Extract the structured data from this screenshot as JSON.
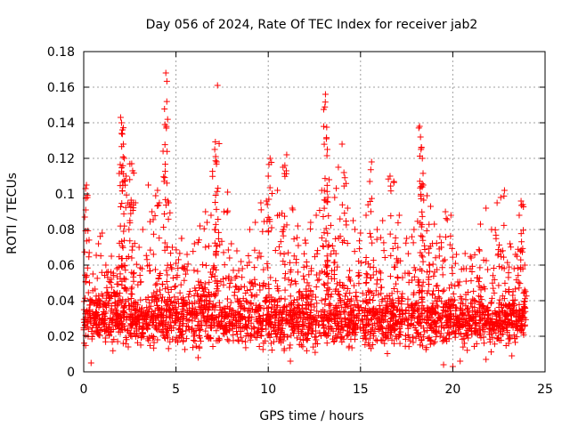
{
  "chart_data": {
    "type": "scatter",
    "title": "Day 056 of 2024, Rate Of TEC Index for receiver jab2",
    "xlabel": "GPS time / hours",
    "ylabel": "ROTI / TECUs",
    "xlim": [
      0,
      25
    ],
    "ylim": [
      0,
      0.18
    ],
    "xticks": [
      0,
      5,
      10,
      15,
      20,
      25
    ],
    "xtick_labels": [
      "0",
      "5",
      "10",
      "15",
      "20",
      "25"
    ],
    "yticks": [
      0,
      0.02,
      0.04,
      0.06,
      0.08,
      0.1,
      0.12,
      0.14,
      0.16,
      0.18
    ],
    "ytick_labels": [
      "0",
      "0.02",
      "0.04",
      "0.06",
      "0.08",
      "0.1",
      "0.12",
      "0.14",
      "0.16",
      "0.18"
    ],
    "grid": true,
    "marker": "plus",
    "color": "#ff0000",
    "series": [
      {
        "name": "ROTI",
        "points": [
          [
            0.1,
            0.103
          ],
          [
            0.15,
            0.105
          ],
          [
            0.2,
            0.098
          ],
          [
            0.3,
            0.067
          ],
          [
            0.5,
            0.055
          ],
          [
            0.8,
            0.072
          ],
          [
            1.0,
            0.078
          ],
          [
            1.2,
            0.06
          ],
          [
            1.5,
            0.065
          ],
          [
            1.8,
            0.058
          ],
          [
            2.0,
            0.143
          ],
          [
            2.05,
            0.14
          ],
          [
            2.1,
            0.136
          ],
          [
            2.15,
            0.128
          ],
          [
            2.2,
            0.12
          ],
          [
            2.3,
            0.11
          ],
          [
            2.5,
            0.085
          ],
          [
            2.6,
            0.117
          ],
          [
            2.65,
            0.113
          ],
          [
            2.8,
            0.095
          ],
          [
            3.0,
            0.07
          ],
          [
            3.2,
            0.08
          ],
          [
            3.5,
            0.105
          ],
          [
            3.7,
            0.09
          ],
          [
            3.9,
            0.099
          ],
          [
            4.0,
            0.102
          ],
          [
            4.1,
            0.095
          ],
          [
            4.3,
            0.124
          ],
          [
            4.4,
            0.139
          ],
          [
            4.45,
            0.168
          ],
          [
            4.6,
            0.095
          ],
          [
            4.8,
            0.07
          ],
          [
            5.0,
            0.061
          ],
          [
            5.3,
            0.075
          ],
          [
            5.6,
            0.066
          ],
          [
            6.0,
            0.072
          ],
          [
            6.3,
            0.082
          ],
          [
            6.6,
            0.09
          ],
          [
            6.9,
            0.088
          ],
          [
            7.1,
            0.125
          ],
          [
            7.15,
            0.121
          ],
          [
            7.2,
            0.118
          ],
          [
            7.25,
            0.161
          ],
          [
            7.6,
            0.09
          ],
          [
            7.8,
            0.101
          ],
          [
            8.0,
            0.072
          ],
          [
            8.3,
            0.068
          ],
          [
            8.6,
            0.058
          ],
          [
            9.0,
            0.08
          ],
          [
            9.3,
            0.084
          ],
          [
            9.6,
            0.095
          ],
          [
            9.9,
            0.096
          ],
          [
            10.0,
            0.11
          ],
          [
            10.1,
            0.12
          ],
          [
            10.5,
            0.102
          ],
          [
            10.8,
            0.115
          ],
          [
            10.9,
            0.116
          ],
          [
            11.0,
            0.122
          ],
          [
            11.3,
            0.092
          ],
          [
            11.6,
            0.082
          ],
          [
            12.0,
            0.074
          ],
          [
            12.3,
            0.084
          ],
          [
            12.6,
            0.088
          ],
          [
            12.9,
            0.102
          ],
          [
            13.1,
            0.156
          ],
          [
            13.15,
            0.131
          ],
          [
            13.2,
            0.125
          ],
          [
            13.3,
            0.108
          ],
          [
            13.6,
            0.098
          ],
          [
            13.8,
            0.115
          ],
          [
            14.0,
            0.128
          ],
          [
            14.1,
            0.112
          ],
          [
            14.3,
            0.092
          ],
          [
            14.6,
            0.085
          ],
          [
            15.0,
            0.078
          ],
          [
            15.3,
            0.088
          ],
          [
            15.5,
            0.107
          ],
          [
            15.6,
            0.118
          ],
          [
            15.9,
            0.08
          ],
          [
            16.2,
            0.085
          ],
          [
            16.6,
            0.11
          ],
          [
            16.8,
            0.107
          ],
          [
            17.1,
            0.088
          ],
          [
            17.5,
            0.075
          ],
          [
            17.9,
            0.08
          ],
          [
            18.2,
            0.138
          ],
          [
            18.25,
            0.132
          ],
          [
            18.3,
            0.126
          ],
          [
            18.35,
            0.12
          ],
          [
            18.4,
            0.105
          ],
          [
            18.6,
            0.099
          ],
          [
            18.8,
            0.093
          ],
          [
            19.0,
            0.083
          ],
          [
            19.3,
            0.076
          ],
          [
            19.6,
            0.09
          ],
          [
            19.9,
            0.088
          ],
          [
            20.2,
            0.066
          ],
          [
            20.6,
            0.058
          ],
          [
            21.0,
            0.064
          ],
          [
            21.5,
            0.083
          ],
          [
            21.8,
            0.092
          ],
          [
            22.1,
            0.08
          ],
          [
            22.4,
            0.095
          ],
          [
            22.6,
            0.098
          ],
          [
            22.8,
            0.102
          ],
          [
            23.1,
            0.072
          ],
          [
            23.4,
            0.066
          ],
          [
            23.6,
            0.088
          ],
          [
            23.7,
            0.096
          ],
          [
            23.8,
            0.094
          ],
          [
            23.9,
            0.06
          ],
          [
            0.4,
            0.005
          ],
          [
            6.2,
            0.008
          ],
          [
            11.2,
            0.006
          ],
          [
            19.5,
            0.004
          ],
          [
            20.0,
            0.003
          ],
          [
            20.4,
            0.006
          ],
          [
            21.8,
            0.007
          ],
          [
            23.2,
            0.009
          ]
        ]
      }
    ],
    "dense_band": {
      "x_range": [
        0,
        24
      ],
      "y_range": [
        0.008,
        0.045
      ],
      "envelope_note": "dense cloud of points filling 0.01–0.04 TECUs across the day"
    }
  }
}
